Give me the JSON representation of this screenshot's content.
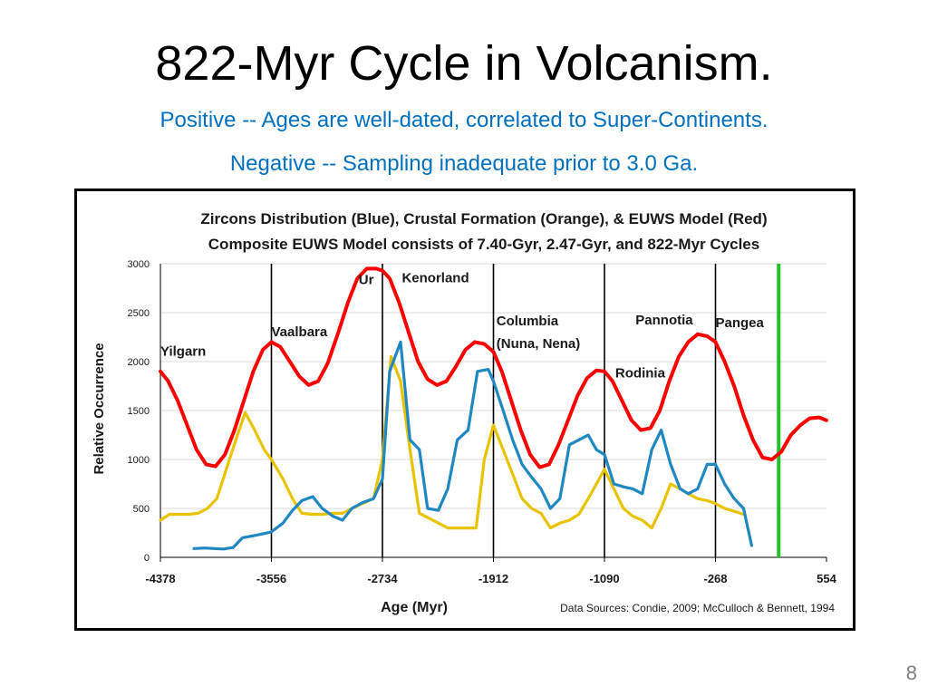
{
  "slide": {
    "title": "822-Myr Cycle in Volcanism.",
    "subtitle_positive": "Positive -- Ages are well-dated, correlated to Super-Continents.",
    "subtitle_negative": "Negative -- Sampling inadequate prior to 3.0 Ga.",
    "page_number": "8"
  },
  "chart_data": {
    "type": "line",
    "title": "Zircons Distribution  (Blue), Crustal  Formation  (Orange), & EUWS Model (Red)",
    "subtitle": "Composite  EUWS Model  consists of 7.40-Gyr, 2.47-Gyr, and 822-Myr Cycles",
    "xlabel": "Age (Myr)",
    "ylabel": "Relative Occurrence",
    "source_note": "Data Sources:  Condie, 2009;  McCulloch & Bennett, 1994",
    "xlim": [
      -4378,
      554
    ],
    "ylim": [
      0,
      3000
    ],
    "x_ticks": [
      -4378,
      -3556,
      -2734,
      -1912,
      -1090,
      -268,
      554
    ],
    "y_ticks": [
      0,
      500,
      1000,
      1500,
      2000,
      2500,
      3000
    ],
    "grid": "y",
    "cycle_markers": [
      -3556,
      -2734,
      -1912,
      -1090,
      -268
    ],
    "green_marker": 200,
    "colors": {
      "red": "#ff0000",
      "blue": "#1f87c2",
      "yellow": "#e8c400",
      "green": "#22c02a",
      "black_line": "#000000"
    },
    "annotations": [
      {
        "text": "Yilgarn",
        "x": -4378,
        "y": 2060
      },
      {
        "text": "Vaalbara",
        "x": -3556,
        "y": 2260
      },
      {
        "text": "Ur",
        "x": -2910,
        "y": 2790
      },
      {
        "text": "Kenorland",
        "x": -2590,
        "y": 2810
      },
      {
        "text": "Columbia",
        "x": -1890,
        "y": 2370
      },
      {
        "text": "(Nuna, Nena)",
        "x": -1890,
        "y": 2140
      },
      {
        "text": "Pannotia",
        "x": -860,
        "y": 2380
      },
      {
        "text": "Pangea",
        "x": -268,
        "y": 2350
      },
      {
        "text": "Rodinia",
        "x": -1010,
        "y": 1840
      }
    ],
    "series": [
      {
        "color_key": "red",
        "x": [
          -4378,
          -4320,
          -4250,
          -4180,
          -4110,
          -4040,
          -3970,
          -3900,
          -3830,
          -3760,
          -3690,
          -3620,
          -3556,
          -3490,
          -3420,
          -3350,
          -3280,
          -3210,
          -3140,
          -3060,
          -2990,
          -2920,
          -2850,
          -2780,
          -2734,
          -2680,
          -2610,
          -2540,
          -2470,
          -2400,
          -2330,
          -2260,
          -2190,
          -2120,
          -2050,
          -1980,
          -1912,
          -1850,
          -1780,
          -1710,
          -1640,
          -1570,
          -1500,
          -1430,
          -1360,
          -1290,
          -1220,
          -1150,
          -1090,
          -1030,
          -960,
          -890,
          -820,
          -750,
          -680,
          -610,
          -540,
          -470,
          -400,
          -330,
          -268,
          -200,
          -130,
          -60,
          10,
          80,
          150,
          220,
          290,
          360,
          430,
          500,
          554
        ],
        "values": [
          1900,
          1800,
          1600,
          1350,
          1100,
          950,
          930,
          1050,
          1300,
          1600,
          1900,
          2120,
          2200,
          2150,
          2000,
          1850,
          1760,
          1800,
          1980,
          2300,
          2600,
          2850,
          2950,
          2950,
          2930,
          2850,
          2600,
          2300,
          2000,
          1820,
          1760,
          1800,
          1950,
          2120,
          2200,
          2180,
          2100,
          1900,
          1600,
          1300,
          1050,
          920,
          950,
          1150,
          1400,
          1650,
          1830,
          1910,
          1900,
          1800,
          1600,
          1400,
          1300,
          1320,
          1500,
          1800,
          2050,
          2200,
          2280,
          2260,
          2200,
          2000,
          1750,
          1450,
          1200,
          1020,
          1000,
          1080,
          1250,
          1350,
          1420,
          1430,
          1400
        ]
      },
      {
        "color_key": "blue",
        "x": [
          -4130,
          -4050,
          -3980,
          -3910,
          -3840,
          -3770,
          -3690,
          -3620,
          -3556,
          -3470,
          -3400,
          -3330,
          -3250,
          -3180,
          -3100,
          -3030,
          -2960,
          -2880,
          -2800,
          -2734,
          -2680,
          -2600,
          -2530,
          -2460,
          -2400,
          -2320,
          -2250,
          -2180,
          -2100,
          -2030,
          -1950,
          -1912,
          -1840,
          -1770,
          -1700,
          -1630,
          -1560,
          -1490,
          -1420,
          -1350,
          -1280,
          -1210,
          -1150,
          -1090,
          -1020,
          -950,
          -880,
          -810,
          -740,
          -670,
          -600,
          -530,
          -470,
          -400,
          -330,
          -268,
          -200,
          -130,
          -60,
          0
        ],
        "values": [
          90,
          95,
          90,
          85,
          100,
          200,
          220,
          240,
          260,
          350,
          480,
          580,
          620,
          500,
          420,
          380,
          500,
          560,
          600,
          800,
          1900,
          2200,
          1200,
          1100,
          500,
          480,
          700,
          1200,
          1300,
          1900,
          1920,
          1800,
          1500,
          1200,
          950,
          820,
          700,
          500,
          600,
          1150,
          1200,
          1250,
          1100,
          1050,
          750,
          720,
          700,
          650,
          1100,
          1300,
          950,
          700,
          650,
          700,
          950,
          950,
          750,
          600,
          500,
          120
        ]
      },
      {
        "color_key": "yellow",
        "x": [
          -4378,
          -4310,
          -4240,
          -4170,
          -4100,
          -4030,
          -3960,
          -3890,
          -3820,
          -3750,
          -3680,
          -3610,
          -3556,
          -3470,
          -3400,
          -3330,
          -3250,
          -3180,
          -3100,
          -3030,
          -2960,
          -2880,
          -2800,
          -2734,
          -2670,
          -2600,
          -2530,
          -2460,
          -2390,
          -2320,
          -2250,
          -2180,
          -2110,
          -2040,
          -1980,
          -1912,
          -1840,
          -1770,
          -1700,
          -1630,
          -1560,
          -1490,
          -1420,
          -1350,
          -1280,
          -1210,
          -1150,
          -1090,
          -1020,
          -950,
          -880,
          -810,
          -740,
          -670,
          -600,
          -530,
          -470,
          -400,
          -330,
          -268,
          -200,
          -130,
          -60
        ],
        "values": [
          380,
          440,
          440,
          440,
          450,
          500,
          600,
          900,
          1200,
          1480,
          1300,
          1100,
          1000,
          800,
          600,
          450,
          440,
          440,
          450,
          450,
          500,
          550,
          600,
          1000,
          2050,
          1800,
          1100,
          450,
          400,
          350,
          300,
          300,
          300,
          300,
          1000,
          1350,
          1100,
          850,
          600,
          500,
          450,
          300,
          350,
          380,
          440,
          600,
          750,
          900,
          700,
          500,
          420,
          380,
          300,
          500,
          750,
          700,
          650,
          600,
          580,
          550,
          500,
          470,
          440
        ]
      }
    ]
  }
}
